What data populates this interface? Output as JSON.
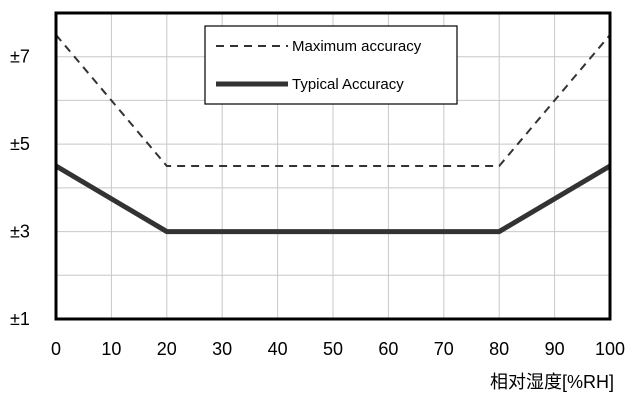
{
  "chart_data": {
    "type": "line",
    "title": "",
    "xlabel": "相对湿度[%RH]",
    "ylabel": "",
    "xlim": [
      0,
      100
    ],
    "ylim": [
      1,
      8
    ],
    "x_ticks": [
      0,
      10,
      20,
      30,
      40,
      50,
      60,
      70,
      80,
      90,
      100
    ],
    "x_tick_labels": [
      "0",
      "10",
      "20",
      "30",
      "40",
      "50",
      "60",
      "70",
      "80",
      "90",
      "100"
    ],
    "y_ticks": [
      1,
      3,
      5,
      7
    ],
    "y_tick_labels": [
      "±1",
      "±3",
      "±5",
      "±7"
    ],
    "grid": true,
    "legend_position": "top-center",
    "series": [
      {
        "name": "Maximum accuracy",
        "style": "dashed",
        "color": "#333333",
        "x": [
          0,
          20,
          80,
          100
        ],
        "y": [
          7.5,
          4.5,
          4.5,
          7.5
        ]
      },
      {
        "name": "Typical Accuracy",
        "style": "solid",
        "color": "#333333",
        "x": [
          0,
          20,
          80,
          100
        ],
        "y": [
          4.5,
          3,
          3,
          4.5
        ]
      }
    ]
  },
  "colors": {
    "grid": "#c8c8c8",
    "frame": "#000000",
    "series": "#333333"
  }
}
